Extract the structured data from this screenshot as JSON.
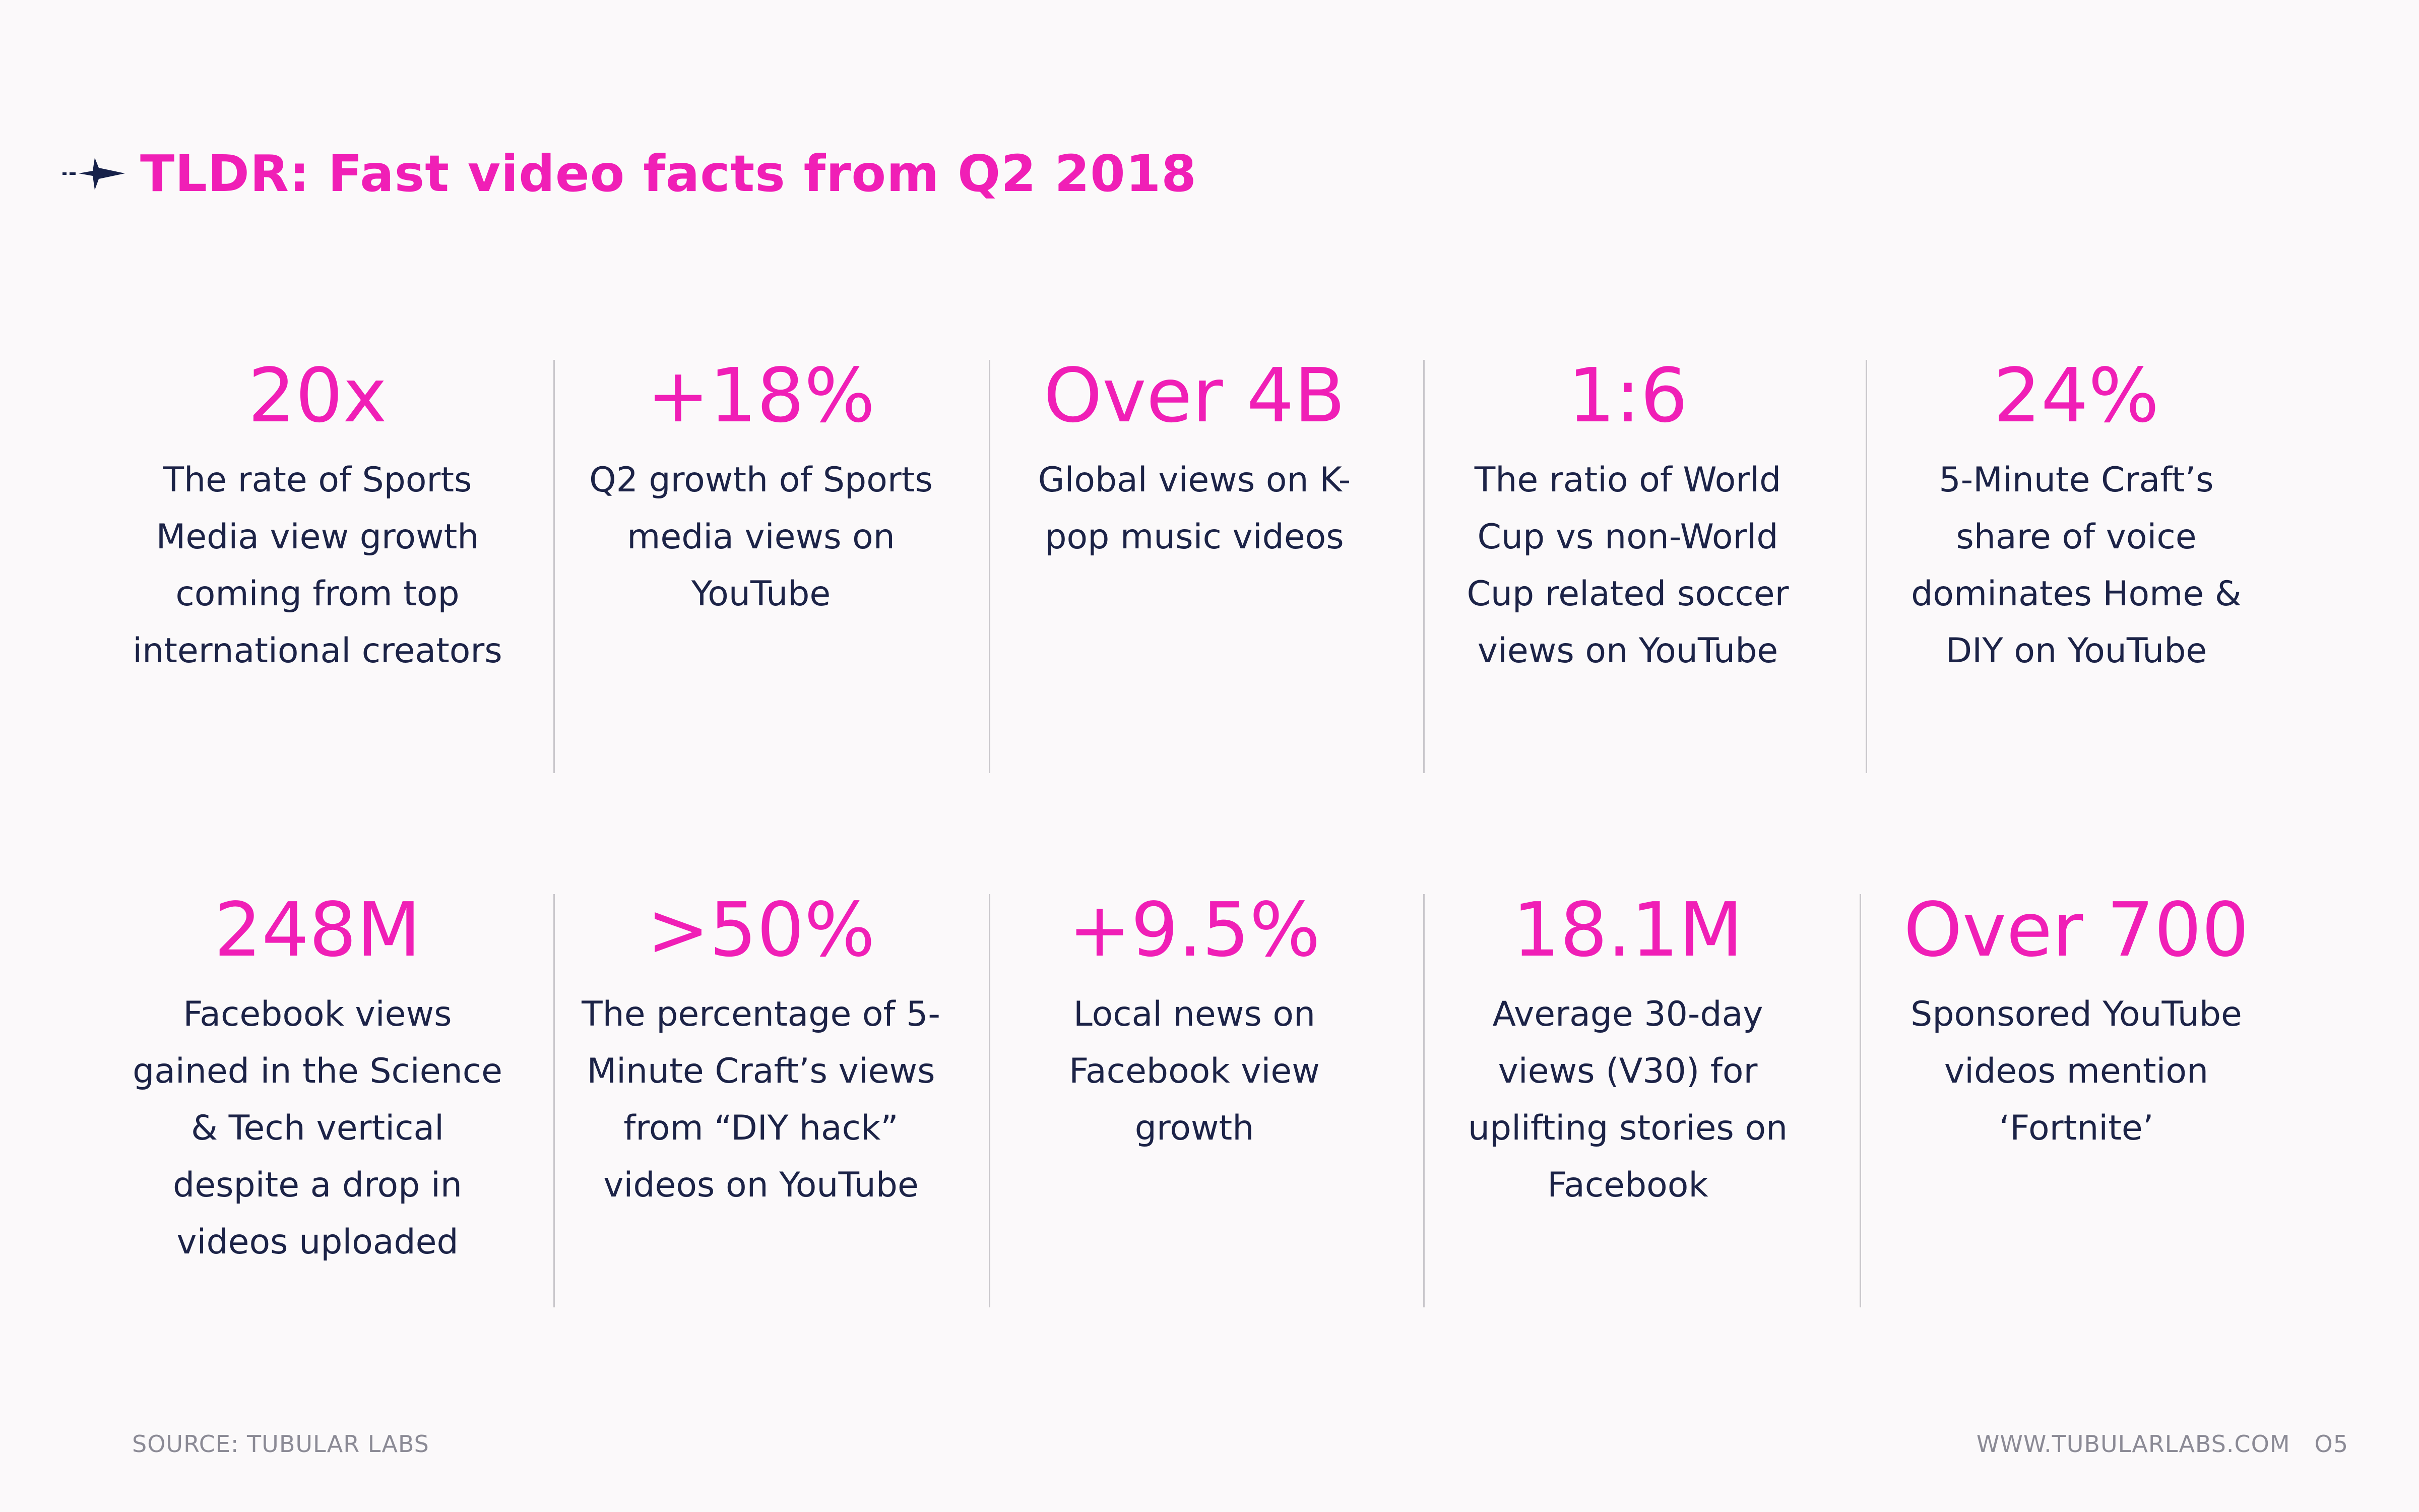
{
  "header": {
    "title": "TLDR: Fast video facts from Q2 2018"
  },
  "facts": [
    {
      "stat": "20x",
      "desc": "The rate of Sports Media view growth coming from top international creators"
    },
    {
      "stat": "+18%",
      "desc": "Q2 growth of Sports media views on YouTube"
    },
    {
      "stat": "Over 4B",
      "desc": "Global views on K-pop music videos"
    },
    {
      "stat": "1:6",
      "desc": "The ratio of World Cup vs non-World Cup related soccer views on YouTube"
    },
    {
      "stat": "24%",
      "desc": "5-Minute Craft’s share of voice dominates Home & DIY on YouTube"
    },
    {
      "stat": "248M",
      "desc": "Facebook views gained in the Science & Tech vertical despite a drop in videos uploaded"
    },
    {
      "stat": ">50%",
      "desc": "The percentage of 5-Minute Craft’s views from “DIY hack” videos on YouTube"
    },
    {
      "stat": "+9.5%",
      "desc": "Local news on Facebook view growth"
    },
    {
      "stat": "18.1M",
      "desc": "Average 30-day views (V30) for uplifting stories on Facebook"
    },
    {
      "stat": "Over 700",
      "desc": "Sponsored YouTube videos mention ‘Fortnite’"
    }
  ],
  "footer": {
    "source": "SOURCE: TUBULAR LABS",
    "website": "WWW.TUBULARLABS.COM",
    "page_number": "O5"
  },
  "colors": {
    "accent": "#f01fb6",
    "text": "#1c2347",
    "footer": "#8b8a95",
    "divider": "#c9c7cb",
    "background": "#fbf9fa",
    "logo": "#17224a"
  },
  "icons": {
    "logo": "tubular-logo-icon"
  }
}
